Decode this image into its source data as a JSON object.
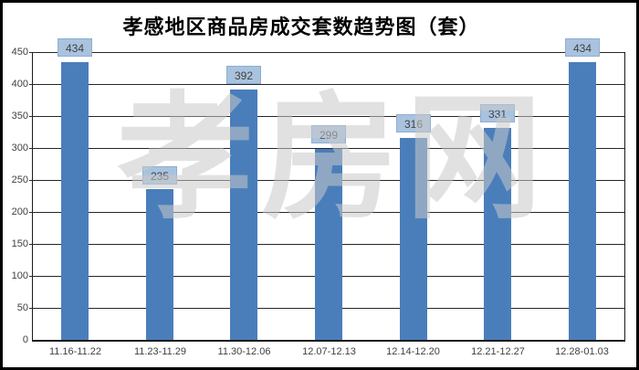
{
  "chart_data": {
    "type": "bar",
    "title": "孝感地区商品房成交套数趋势图（套）",
    "categories": [
      "11.16-11.22",
      "11.23-11.29",
      "11.30-12.06",
      "12.07-12.13",
      "12.14-12.20",
      "12.21-12.27",
      "12.28-01.03"
    ],
    "values": [
      434,
      235,
      392,
      299,
      316,
      331,
      434
    ],
    "value_labels": [
      "434",
      "235",
      "392",
      "299",
      "316",
      "331",
      "434"
    ],
    "xlabel": "",
    "ylabel": "",
    "ylim": [
      0,
      450
    ],
    "y_ticks": [
      0,
      50,
      100,
      150,
      200,
      250,
      300,
      350,
      400,
      450
    ],
    "gridline_step": 50,
    "grid": "on",
    "legend": "none",
    "watermark": "孝房网",
    "colors": {
      "bar": "#4a7ebb",
      "value_label_bg": "#a9c3df",
      "value_label_border": "#8fadd1",
      "value_label_text": "#404040",
      "axis_text": "#404040",
      "gridline": "#262626",
      "watermark_gray": "#e2e2e2"
    }
  }
}
